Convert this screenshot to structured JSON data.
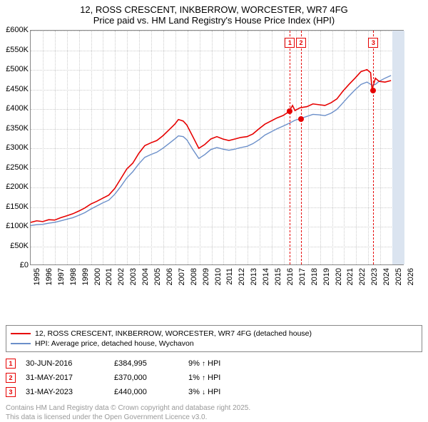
{
  "title": {
    "line1": "12, ROSS CRESCENT, INKBERROW, WORCESTER, WR7 4FG",
    "line2": "Price paid vs. HM Land Registry's House Price Index (HPI)"
  },
  "chart": {
    "type": "line",
    "xlim": [
      1995,
      2026
    ],
    "ylim": [
      0,
      600000
    ],
    "ytick_step": 50000,
    "ytick_labels": [
      "£0",
      "£50K",
      "£100K",
      "£150K",
      "£200K",
      "£250K",
      "£300K",
      "£350K",
      "£400K",
      "£450K",
      "£500K",
      "£550K",
      "£600K"
    ],
    "xtick_years": [
      1995,
      1996,
      1997,
      1998,
      1999,
      2000,
      2001,
      2002,
      2003,
      2004,
      2005,
      2006,
      2007,
      2008,
      2009,
      2010,
      2011,
      2012,
      2013,
      2014,
      2015,
      2016,
      2017,
      2018,
      2019,
      2020,
      2021,
      2022,
      2023,
      2024,
      2025,
      2026
    ],
    "future_shade_from": 2025,
    "background_color": "#ffffff",
    "grid_color": "#cccccc",
    "series": [
      {
        "name": "property",
        "color": "#e60000",
        "width": 1.6,
        "label": "12, ROSS CRESCENT, INKBERROW, WORCESTER, WR7 4FG (detached house)",
        "data": [
          [
            1995,
            108000
          ],
          [
            1995.5,
            112000
          ],
          [
            1996,
            110000
          ],
          [
            1996.5,
            115000
          ],
          [
            1997,
            114000
          ],
          [
            1997.5,
            120000
          ],
          [
            1998,
            125000
          ],
          [
            1998.5,
            130000
          ],
          [
            1999,
            137000
          ],
          [
            1999.5,
            145000
          ],
          [
            2000,
            155000
          ],
          [
            2000.5,
            162000
          ],
          [
            2001,
            170000
          ],
          [
            2001.5,
            178000
          ],
          [
            2002,
            195000
          ],
          [
            2002.5,
            220000
          ],
          [
            2003,
            245000
          ],
          [
            2003.5,
            260000
          ],
          [
            2004,
            285000
          ],
          [
            2004.5,
            305000
          ],
          [
            2005,
            312000
          ],
          [
            2005.5,
            318000
          ],
          [
            2006,
            330000
          ],
          [
            2006.5,
            345000
          ],
          [
            2007,
            360000
          ],
          [
            2007.3,
            372000
          ],
          [
            2007.7,
            368000
          ],
          [
            2008,
            358000
          ],
          [
            2008.5,
            328000
          ],
          [
            2009,
            298000
          ],
          [
            2009.5,
            308000
          ],
          [
            2010,
            322000
          ],
          [
            2010.5,
            328000
          ],
          [
            2011,
            322000
          ],
          [
            2011.5,
            318000
          ],
          [
            2012,
            322000
          ],
          [
            2012.5,
            326000
          ],
          [
            2013,
            328000
          ],
          [
            2013.5,
            335000
          ],
          [
            2014,
            348000
          ],
          [
            2014.5,
            360000
          ],
          [
            2015,
            368000
          ],
          [
            2015.5,
            376000
          ],
          [
            2016,
            382000
          ],
          [
            2016.5,
            392000
          ],
          [
            2016.8,
            408000
          ],
          [
            2017,
            395000
          ],
          [
            2017.42,
            402000
          ],
          [
            2018,
            405000
          ],
          [
            2018.5,
            412000
          ],
          [
            2019,
            410000
          ],
          [
            2019.5,
            408000
          ],
          [
            2020,
            415000
          ],
          [
            2020.5,
            425000
          ],
          [
            2021,
            445000
          ],
          [
            2021.5,
            462000
          ],
          [
            2022,
            478000
          ],
          [
            2022.5,
            495000
          ],
          [
            2023,
            500000
          ],
          [
            2023.3,
            492000
          ],
          [
            2023.42,
            448000
          ],
          [
            2023.7,
            478000
          ],
          [
            2024,
            470000
          ],
          [
            2024.5,
            468000
          ],
          [
            2025,
            472000
          ]
        ]
      },
      {
        "name": "hpi",
        "color": "#6b8fc9",
        "width": 1.4,
        "label": "HPI: Average price, detached house, Wychavon",
        "data": [
          [
            1995,
            100000
          ],
          [
            1995.5,
            102000
          ],
          [
            1996,
            103000
          ],
          [
            1996.5,
            106000
          ],
          [
            1997,
            108000
          ],
          [
            1997.5,
            112000
          ],
          [
            1998,
            116000
          ],
          [
            1998.5,
            120000
          ],
          [
            1999,
            126000
          ],
          [
            1999.5,
            133000
          ],
          [
            2000,
            142000
          ],
          [
            2000.5,
            150000
          ],
          [
            2001,
            158000
          ],
          [
            2001.5,
            165000
          ],
          [
            2002,
            180000
          ],
          [
            2002.5,
            200000
          ],
          [
            2003,
            222000
          ],
          [
            2003.5,
            238000
          ],
          [
            2004,
            258000
          ],
          [
            2004.5,
            275000
          ],
          [
            2005,
            282000
          ],
          [
            2005.5,
            288000
          ],
          [
            2006,
            298000
          ],
          [
            2006.5,
            310000
          ],
          [
            2007,
            322000
          ],
          [
            2007.3,
            330000
          ],
          [
            2007.7,
            328000
          ],
          [
            2008,
            320000
          ],
          [
            2008.5,
            295000
          ],
          [
            2009,
            272000
          ],
          [
            2009.5,
            282000
          ],
          [
            2010,
            295000
          ],
          [
            2010.5,
            300000
          ],
          [
            2011,
            296000
          ],
          [
            2011.5,
            293000
          ],
          [
            2012,
            296000
          ],
          [
            2012.5,
            300000
          ],
          [
            2013,
            303000
          ],
          [
            2013.5,
            310000
          ],
          [
            2014,
            320000
          ],
          [
            2014.5,
            332000
          ],
          [
            2015,
            340000
          ],
          [
            2015.5,
            348000
          ],
          [
            2016,
            355000
          ],
          [
            2016.5,
            362000
          ],
          [
            2017,
            370000
          ],
          [
            2017.42,
            374000
          ],
          [
            2018,
            380000
          ],
          [
            2018.5,
            385000
          ],
          [
            2019,
            384000
          ],
          [
            2019.5,
            382000
          ],
          [
            2020,
            388000
          ],
          [
            2020.5,
            398000
          ],
          [
            2021,
            415000
          ],
          [
            2021.5,
            432000
          ],
          [
            2022,
            448000
          ],
          [
            2022.5,
            462000
          ],
          [
            2023,
            468000
          ],
          [
            2023.42,
            460000
          ],
          [
            2023.7,
            462000
          ],
          [
            2024,
            470000
          ],
          [
            2024.5,
            478000
          ],
          [
            2025,
            485000
          ]
        ]
      }
    ],
    "callouts": [
      {
        "num": "1",
        "x": 2016.5,
        "date": "30-JUN-2016",
        "price": "£384,995",
        "pct": "9%",
        "dir": "↑",
        "vs": "HPI",
        "marker_y": 395000
      },
      {
        "num": "2",
        "x": 2017.42,
        "date": "31-MAY-2017",
        "price": "£370,000",
        "pct": "1%",
        "dir": "↑",
        "vs": "HPI",
        "marker_y": 375000
      },
      {
        "num": "3",
        "x": 2023.42,
        "date": "31-MAY-2023",
        "price": "£440,000",
        "pct": "3%",
        "dir": "↓",
        "vs": "HPI",
        "marker_y": 448000
      }
    ]
  },
  "attribution": {
    "line1": "Contains HM Land Registry data © Crown copyright and database right 2025.",
    "line2": "This data is licensed under the Open Government Licence v3.0."
  }
}
